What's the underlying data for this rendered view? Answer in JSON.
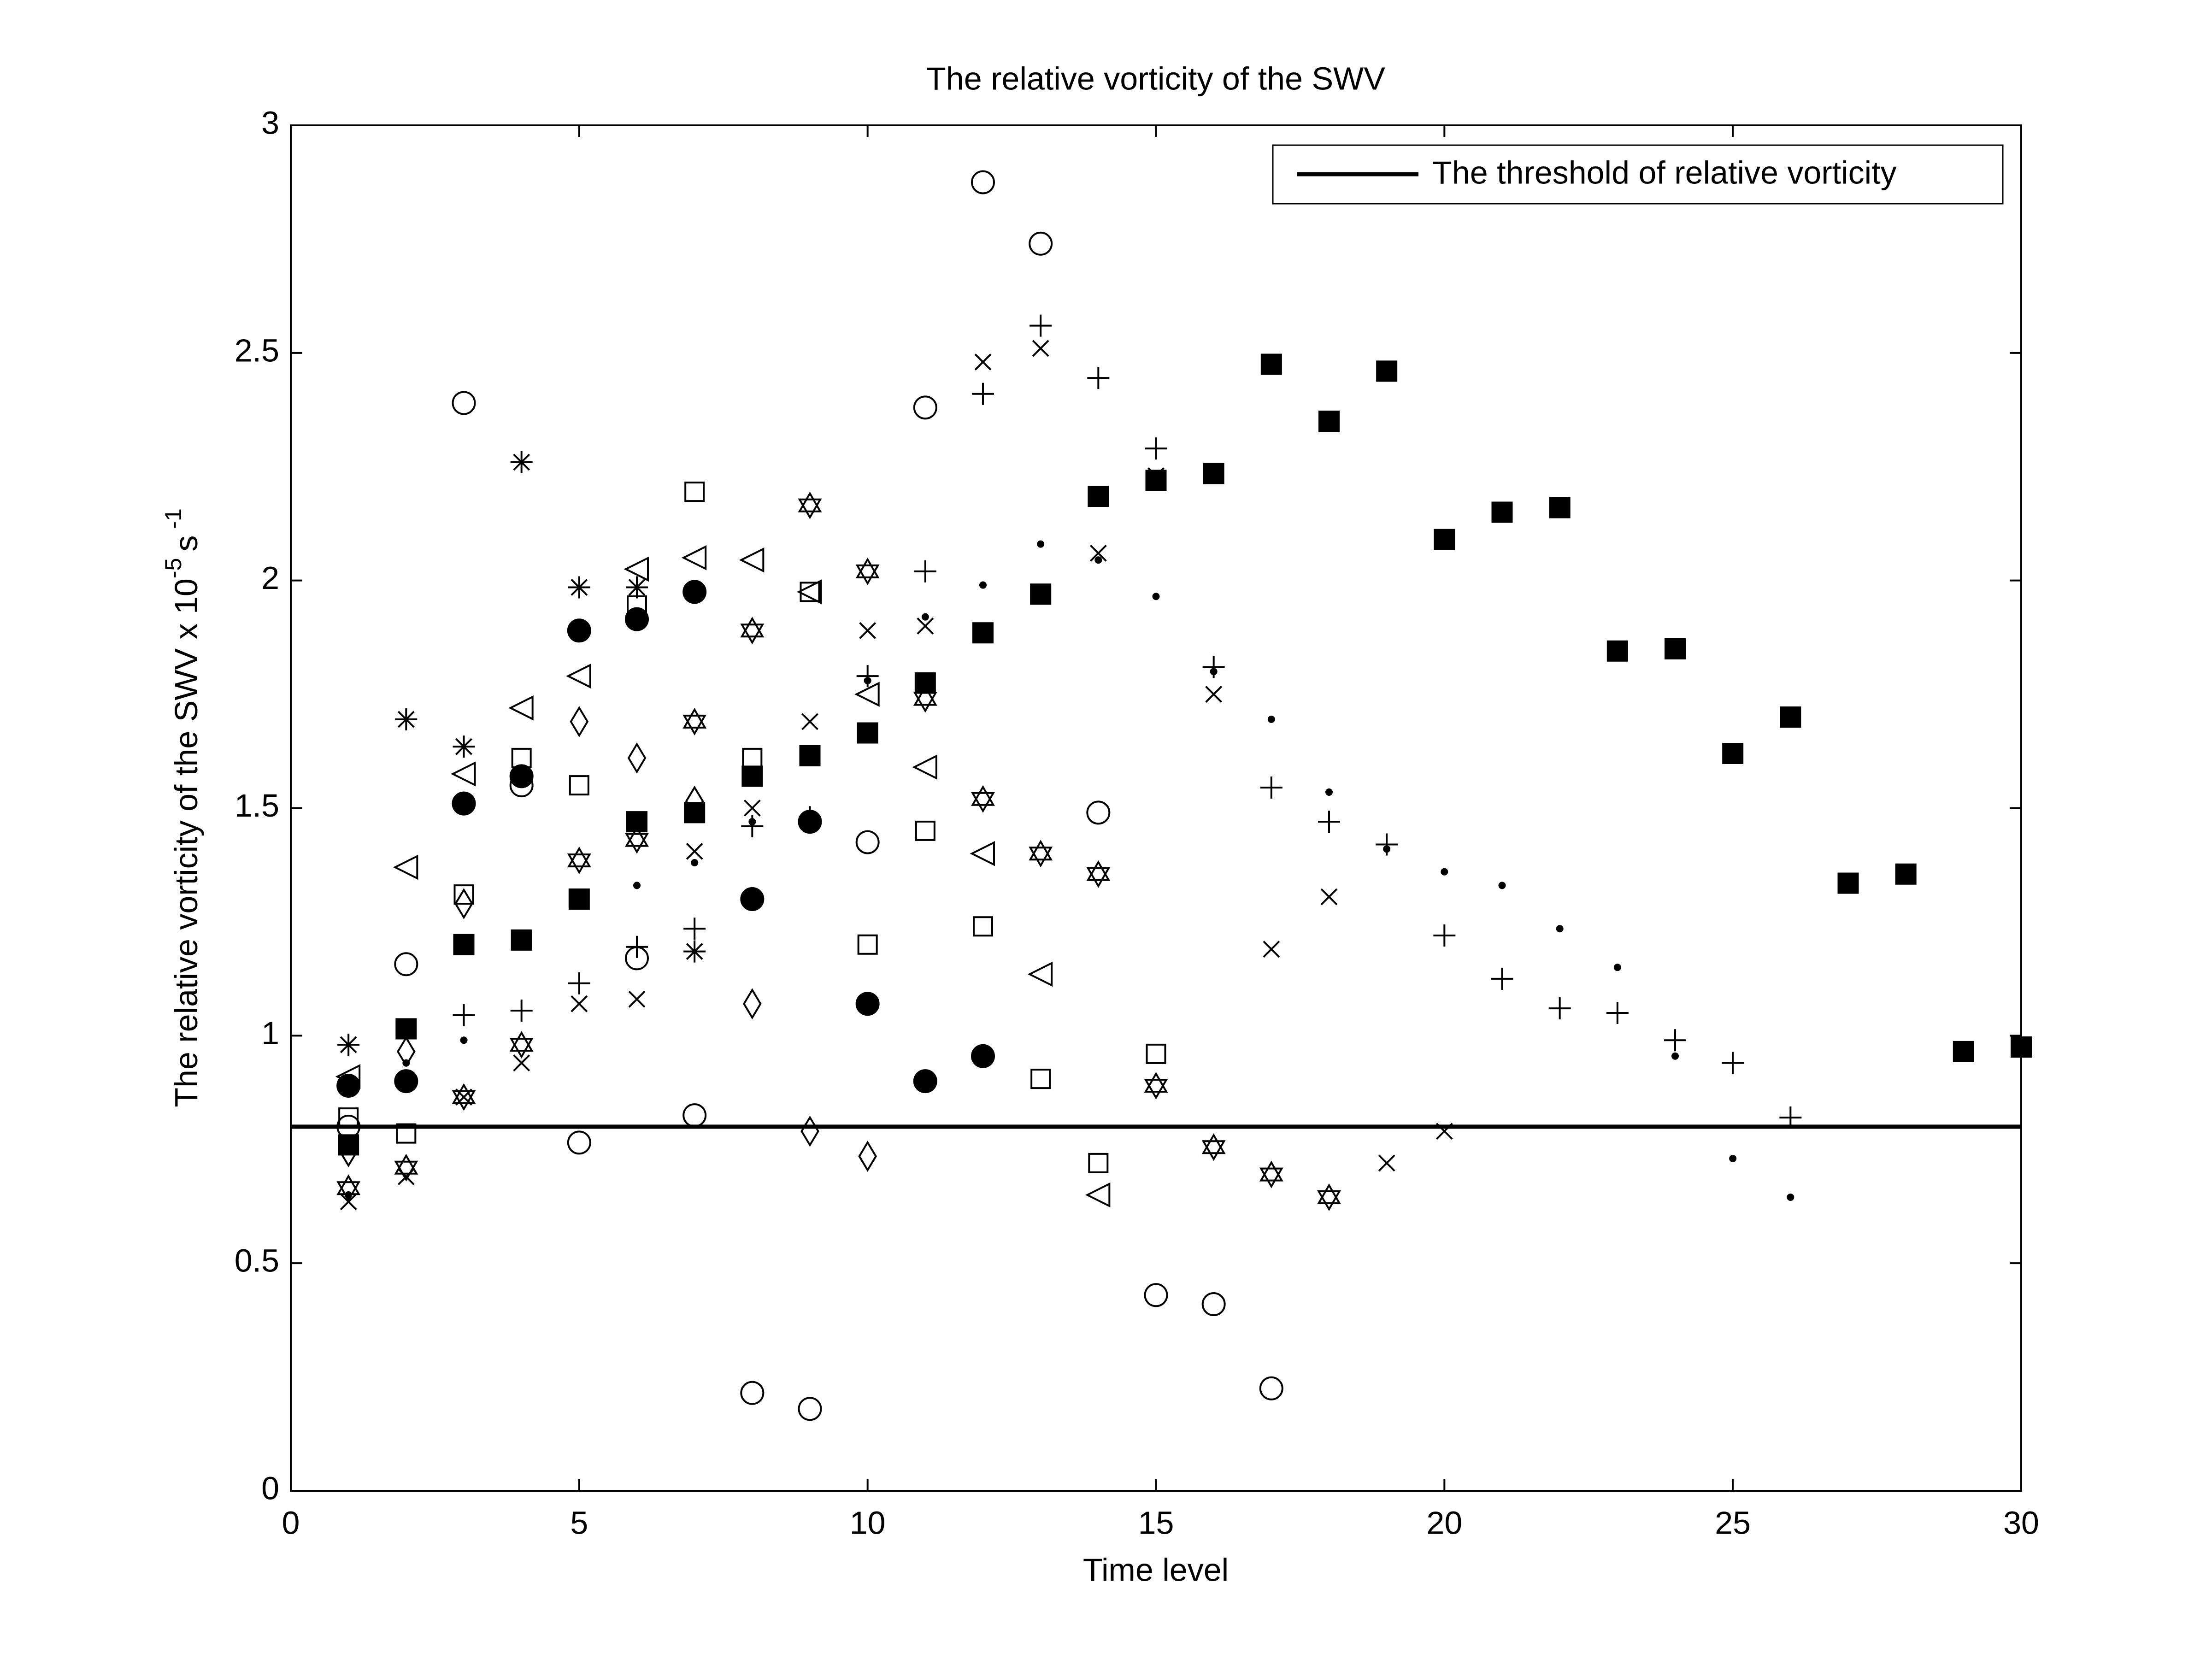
{
  "chart_data": {
    "type": "scatter",
    "title": "The relative vorticity of the SWV",
    "xlabel": "Time level",
    "ylabel": {
      "text": "The relative vorticity of the SWV  x 10",
      "exponent": "-5",
      "unit": "s",
      "unit_exponent": "-1"
    },
    "x": [
      1,
      2,
      3,
      4,
      5,
      6,
      7,
      8,
      9,
      10,
      11,
      12,
      13,
      14,
      15,
      16,
      17,
      18,
      19,
      20,
      21,
      22,
      23,
      24,
      25,
      26,
      27,
      28,
      29,
      30
    ],
    "xlim": [
      0,
      30
    ],
    "xticks": [
      0,
      5,
      10,
      15,
      20,
      25,
      30
    ],
    "ylim": [
      0,
      3
    ],
    "yticks": [
      0,
      0.5,
      1,
      1.5,
      2,
      2.5,
      3
    ],
    "legend_position": "upper right",
    "threshold": {
      "name": "The threshold of relative vorticity",
      "value": 0.8,
      "color": "#000000"
    },
    "series": [
      {
        "marker": "circle-open",
        "color": "#000000",
        "values": [
          0.8,
          1.157,
          2.39,
          1.55,
          0.765,
          1.17,
          0.825,
          0.215,
          0.18,
          1.425,
          2.38,
          2.875,
          2.74,
          1.49,
          0.43,
          0.41,
          0.225,
          null,
          null,
          null,
          null,
          null,
          null,
          null,
          null,
          null,
          null,
          null,
          null,
          null
        ]
      },
      {
        "marker": "circle-filled",
        "color": "#000000",
        "values": [
          0.89,
          0.9,
          1.51,
          1.57,
          1.89,
          1.915,
          1.975,
          1.3,
          1.47,
          1.07,
          0.9,
          0.955,
          null,
          null,
          null,
          null,
          null,
          null,
          null,
          null,
          null,
          null,
          null,
          null,
          null,
          null,
          null,
          null,
          null,
          null
        ]
      },
      {
        "marker": "square-filled",
        "color": "#000000",
        "values": [
          0.76,
          1.015,
          1.2,
          1.21,
          1.3,
          1.47,
          1.49,
          1.57,
          1.615,
          1.665,
          1.775,
          1.885,
          1.97,
          2.185,
          2.22,
          2.235,
          2.475,
          2.35,
          2.46,
          2.09,
          2.15,
          2.16,
          1.845,
          1.85,
          1.62,
          1.7,
          1.335,
          1.355,
          0.965,
          0.975
        ]
      },
      {
        "marker": "square-open",
        "color": "#000000",
        "values": [
          0.82,
          0.785,
          1.31,
          1.61,
          1.55,
          1.945,
          2.195,
          1.61,
          1.975,
          1.2,
          1.45,
          1.24,
          0.905,
          0.72,
          0.96,
          null,
          null,
          null,
          null,
          null,
          null,
          null,
          null,
          null,
          null,
          null,
          null,
          null,
          null,
          null
        ]
      },
      {
        "marker": "plus",
        "color": "#000000",
        "values": [
          null,
          null,
          1.045,
          1.055,
          1.115,
          1.195,
          1.235,
          1.46,
          1.48,
          1.79,
          2.02,
          2.41,
          2.56,
          2.445,
          2.29,
          1.81,
          1.545,
          1.47,
          1.42,
          1.22,
          1.125,
          1.06,
          1.05,
          0.99,
          0.94,
          0.82,
          null,
          null,
          null,
          null
        ]
      },
      {
        "marker": "cross",
        "color": "#000000",
        "values": [
          0.635,
          0.69,
          0.865,
          0.94,
          1.07,
          1.08,
          1.405,
          1.5,
          1.69,
          1.89,
          1.9,
          2.48,
          2.51,
          2.06,
          2.23,
          1.75,
          1.19,
          1.305,
          0.72,
          0.79,
          null,
          null,
          null,
          null,
          null,
          null,
          null,
          null,
          null,
          null
        ]
      },
      {
        "marker": "dot",
        "color": "#000000",
        "values": [
          0.65,
          0.94,
          0.99,
          1.2,
          null,
          1.33,
          1.38,
          1.47,
          null,
          1.78,
          1.92,
          1.99,
          2.08,
          2.045,
          1.965,
          1.8,
          1.695,
          1.535,
          1.41,
          1.36,
          1.33,
          1.235,
          1.15,
          0.955,
          0.73,
          0.645,
          null,
          null,
          null,
          null
        ]
      },
      {
        "marker": "asterisk",
        "color": "#000000",
        "values": [
          0.98,
          1.695,
          1.635,
          2.26,
          1.985,
          1.985,
          1.185,
          null,
          null,
          null,
          null,
          null,
          null,
          null,
          null,
          null,
          null,
          null,
          null,
          null,
          null,
          null,
          null,
          null,
          null,
          null,
          null,
          null,
          null,
          null
        ]
      },
      {
        "marker": "triangle-left",
        "color": "#000000",
        "values": [
          0.91,
          1.37,
          1.575,
          1.72,
          1.79,
          2.025,
          2.05,
          2.045,
          1.975,
          1.75,
          1.59,
          1.4,
          1.135,
          0.65,
          null,
          null,
          null,
          null,
          null,
          null,
          null,
          null,
          null,
          null,
          null,
          null,
          null,
          null,
          null,
          null
        ]
      },
      {
        "marker": "diamond",
        "color": "#000000",
        "values": [
          0.745,
          0.965,
          1.29,
          null,
          1.69,
          1.61,
          1.515,
          1.07,
          0.79,
          0.735,
          null,
          null,
          null,
          null,
          null,
          null,
          null,
          null,
          null,
          null,
          null,
          null,
          null,
          null,
          null,
          null,
          null,
          null,
          null,
          null
        ]
      },
      {
        "marker": "hexagram",
        "color": "#000000",
        "values": [
          0.665,
          0.71,
          0.865,
          0.98,
          1.385,
          1.43,
          1.69,
          1.89,
          2.165,
          2.02,
          1.74,
          1.52,
          1.4,
          1.355,
          0.89,
          0.755,
          0.695,
          0.645,
          null,
          null,
          null,
          null,
          null,
          null,
          null,
          null,
          null,
          null,
          null,
          null
        ]
      }
    ]
  }
}
